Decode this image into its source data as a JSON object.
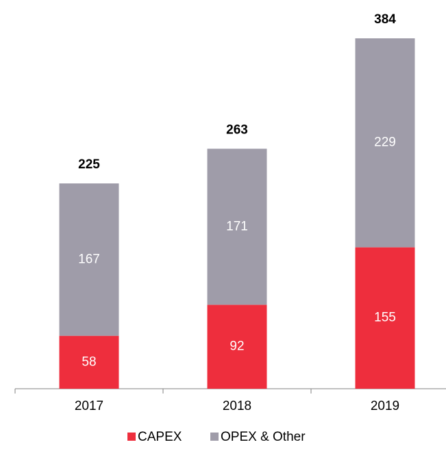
{
  "chart_data": {
    "type": "stacked_bar",
    "categories": [
      "2017",
      "2018",
      "2019"
    ],
    "series": [
      {
        "name": "CAPEX",
        "color": "#ee2e3d",
        "values": [
          58,
          92,
          155
        ]
      },
      {
        "name": "OPEX & Other",
        "color": "#9f9ca9",
        "values": [
          167,
          171,
          229
        ]
      }
    ],
    "totals": [
      225,
      263,
      384
    ]
  }
}
